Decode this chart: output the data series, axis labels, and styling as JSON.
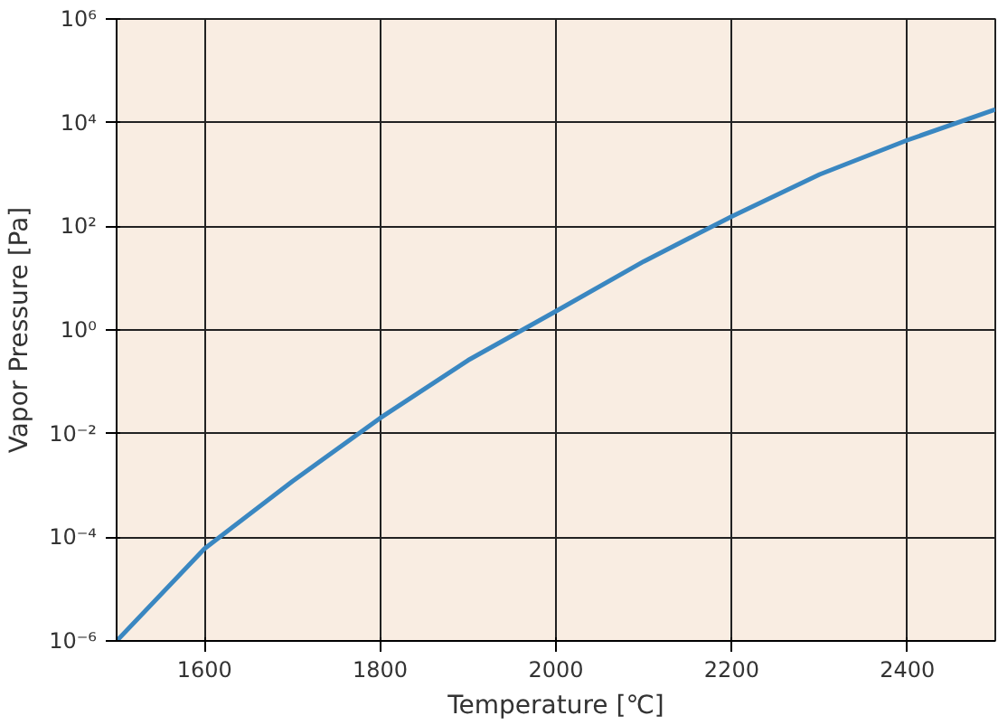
{
  "chart_data": {
    "type": "line",
    "xlabel": "Temperature [℃]",
    "ylabel": "Vapor Pressure [Pa]",
    "x": [
      1500,
      1600,
      1700,
      1800,
      1900,
      2000,
      2100,
      2200,
      2300,
      2400,
      2500
    ],
    "series": [
      {
        "color": "#3a87c1",
        "values": [
          1e-06,
          6e-05,
          0.0012,
          0.02,
          0.26,
          2.3,
          21,
          155,
          1000,
          4600,
          18000
        ]
      }
    ],
    "log": "y",
    "xlim": [
      1500,
      2500
    ],
    "ylim": [
      1e-06,
      1000000.0
    ],
    "xticks": [
      1600,
      1800,
      2000,
      2200,
      2400
    ],
    "yticks": [
      {
        "value": 1e-06,
        "label": "10⁻⁶"
      },
      {
        "value": 0.0001,
        "label": "10⁻⁴"
      },
      {
        "value": 0.01,
        "label": "10⁻²"
      },
      {
        "value": 1,
        "label": "10⁰"
      },
      {
        "value": 100,
        "label": "10²"
      },
      {
        "value": 10000,
        "label": "10⁴"
      },
      {
        "value": 1000000,
        "label": "10⁶"
      }
    ],
    "grid": true,
    "line_style": "solid",
    "marker": "none"
  }
}
